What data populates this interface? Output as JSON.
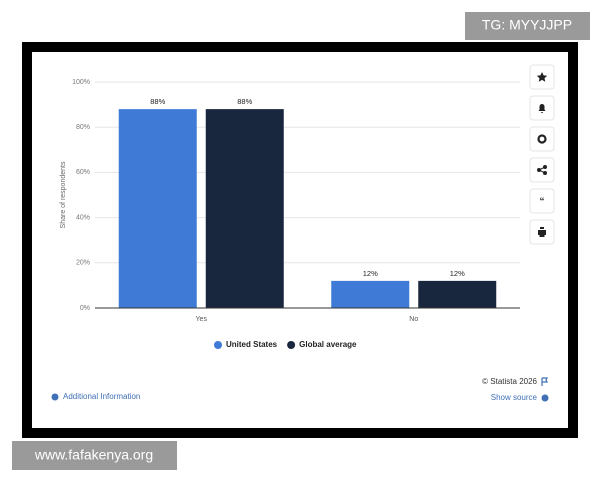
{
  "chart_data": {
    "type": "bar",
    "y_label": "Share of respondents",
    "categories": [
      "Yes",
      "No"
    ],
    "series": [
      {
        "name": "United States",
        "color": "#3f7bd6",
        "values": [
          88,
          12
        ],
        "value_labels": [
          "88%",
          "12%"
        ]
      },
      {
        "name": "Global average",
        "color": "#18273d",
        "values": [
          88,
          12
        ],
        "value_labels": [
          "88%",
          "12%"
        ]
      }
    ],
    "ylim": [
      0,
      100
    ],
    "yticks": [
      {
        "value": 0,
        "label": "0%"
      },
      {
        "value": 20,
        "label": "20%"
      },
      {
        "value": 40,
        "label": "40%"
      },
      {
        "value": 60,
        "label": "60%"
      },
      {
        "value": 80,
        "label": "80%"
      },
      {
        "value": 100,
        "label": "100%"
      }
    ],
    "grid": true,
    "legend": "bottom"
  },
  "footer": {
    "additional_info": "Additional Information",
    "copyright": "© Statista 2026",
    "show_source": "Show source"
  },
  "watermarks": {
    "top": "TG: MYYJJPP",
    "bottom": "www.fafakenya.org"
  }
}
